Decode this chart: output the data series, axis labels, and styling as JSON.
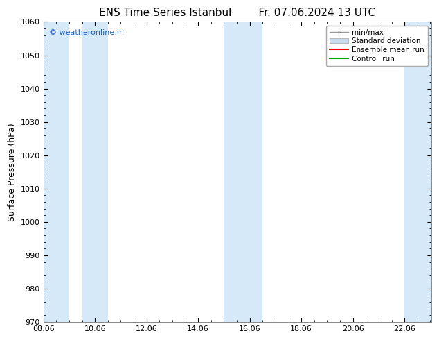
{
  "title": "ENS Time Series Istanbul        Fr. 07.06.2024 13 UTC",
  "ylabel": "Surface Pressure (hPa)",
  "xlim_start": 8.06,
  "xlim_end": 23.1,
  "ylim": [
    970,
    1060
  ],
  "yticks": [
    970,
    980,
    990,
    1000,
    1010,
    1020,
    1030,
    1040,
    1050,
    1060
  ],
  "xtick_labels": [
    "08.06",
    "10.06",
    "12.06",
    "14.06",
    "16.06",
    "18.06",
    "20.06",
    "22.06"
  ],
  "xtick_positions": [
    8.06,
    10.06,
    12.06,
    14.06,
    16.06,
    18.06,
    20.06,
    22.06
  ],
  "shaded_bands": [
    {
      "x_start": 8.06,
      "x_end": 9.06
    },
    {
      "x_start": 9.56,
      "x_end": 10.56
    },
    {
      "x_start": 15.06,
      "x_end": 16.06
    },
    {
      "x_start": 15.06,
      "x_end": 17.06
    },
    {
      "x_start": 22.06,
      "x_end": 23.1
    }
  ],
  "band_color": "#d6e9f8",
  "background_color": "#ffffff",
  "watermark_text": "© weatheronline.in",
  "watermark_color": "#1a5fcc",
  "legend_items": [
    {
      "label": "min/max",
      "color": "#999999",
      "type": "errorbar"
    },
    {
      "label": "Standard deviation",
      "color": "#c8ddf0",
      "type": "box"
    },
    {
      "label": "Ensemble mean run",
      "color": "#ff0000",
      "type": "line"
    },
    {
      "label": "Controll run",
      "color": "#00aa00",
      "type": "line"
    }
  ],
  "title_fontsize": 11,
  "axis_label_fontsize": 9,
  "tick_fontsize": 8,
  "watermark_fontsize": 8,
  "legend_fontsize": 7.5
}
